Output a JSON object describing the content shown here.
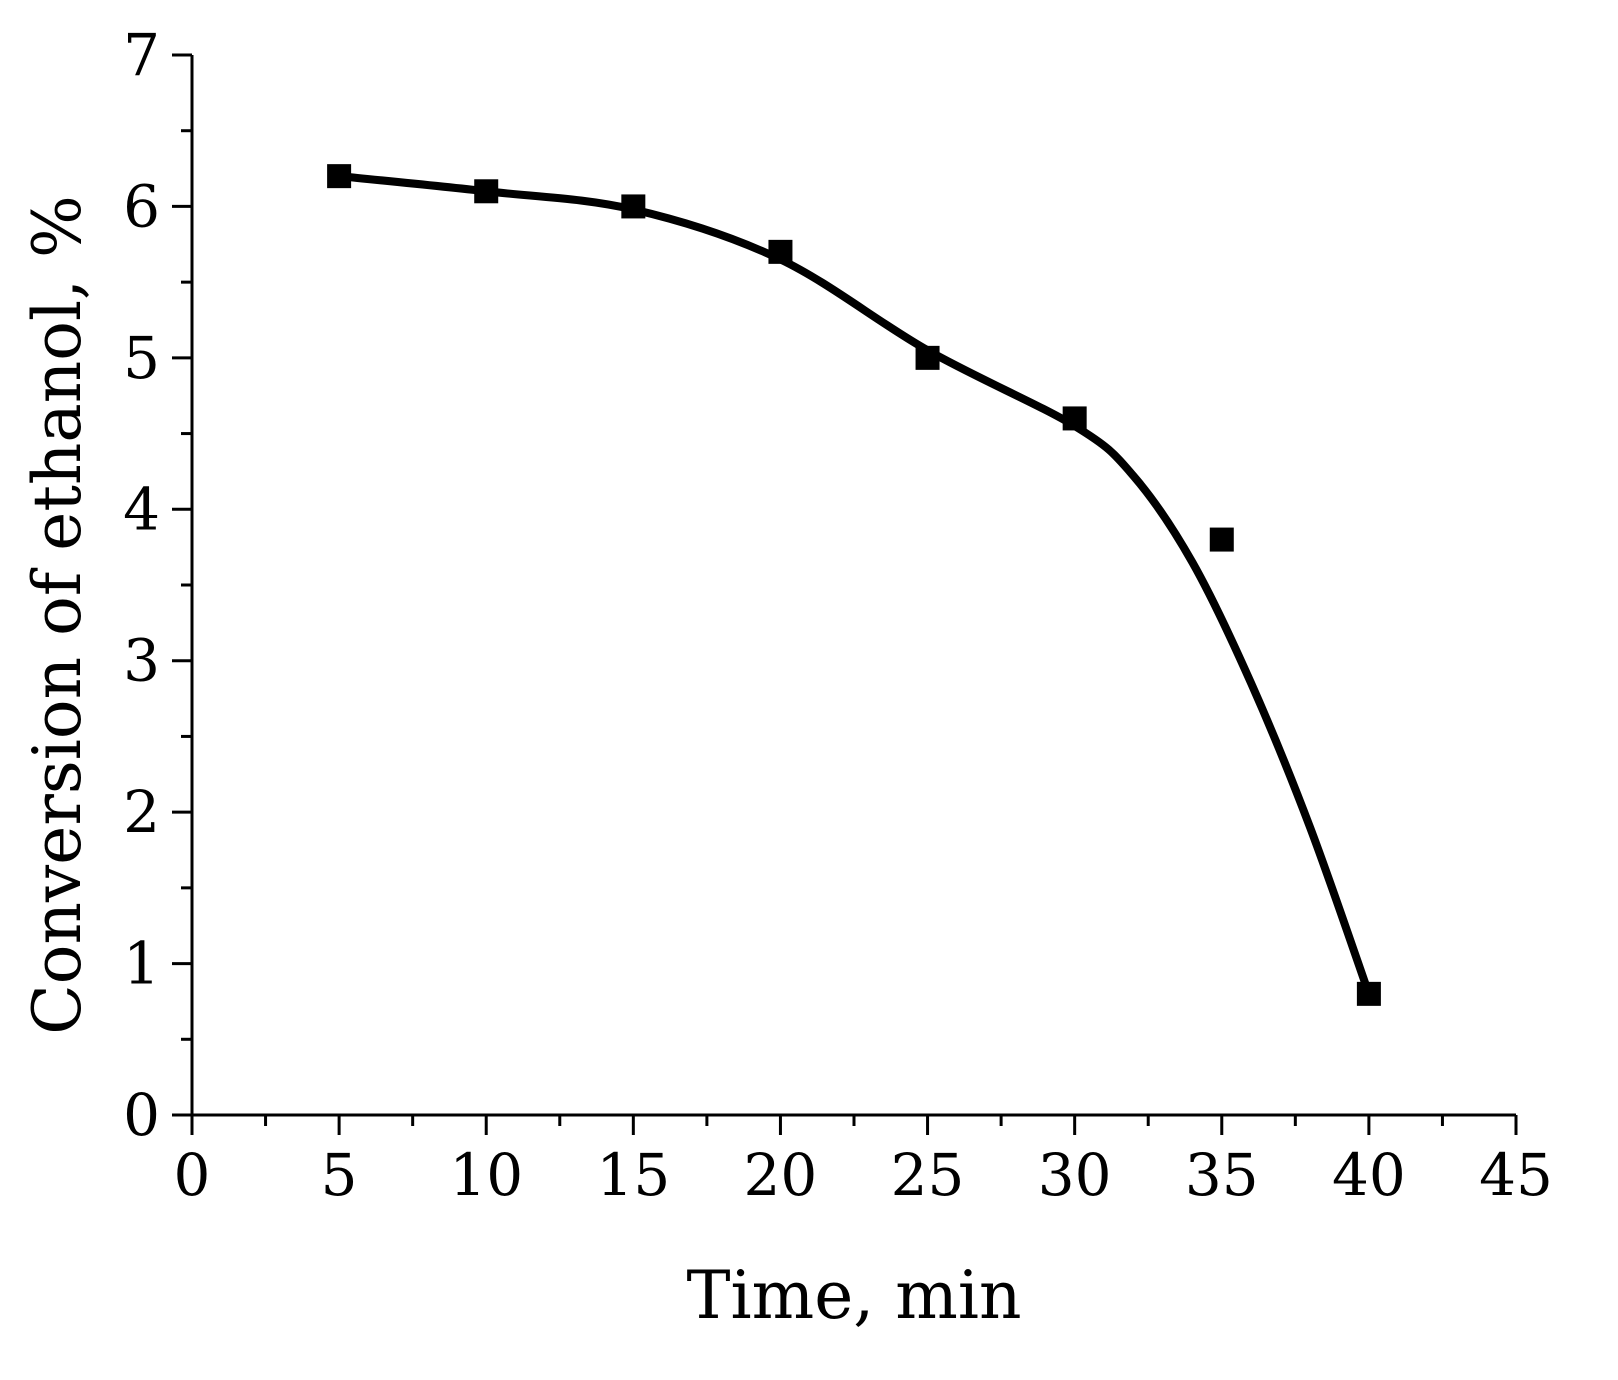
{
  "chart_data": {
    "type": "line",
    "title": "",
    "xlabel": "Time, min",
    "ylabel": "Conversion of ethanol, %",
    "xlim": [
      0,
      45
    ],
    "ylim": [
      0,
      7
    ],
    "x_ticks": [
      0,
      5,
      10,
      15,
      20,
      25,
      30,
      35,
      40,
      45
    ],
    "x_tick_labels": [
      "0",
      "5",
      "10",
      "15",
      "20",
      "25",
      "30",
      "35",
      "40",
      "45"
    ],
    "y_ticks": [
      0,
      1,
      2,
      3,
      4,
      5,
      6,
      7
    ],
    "y_tick_labels": [
      "0",
      "1",
      "2",
      "3",
      "4",
      "5",
      "6",
      "7"
    ],
    "grid": false,
    "legend": "none",
    "series": [
      {
        "marker": "square",
        "color": "#000000",
        "x": [
          5,
          10,
          15,
          20,
          25,
          30,
          35,
          40
        ],
        "y": [
          6.2,
          6.1,
          6.0,
          5.7,
          5.0,
          4.6,
          3.8,
          0.8
        ]
      }
    ],
    "fit_curve": {
      "color": "#000000",
      "x": [
        5,
        10,
        15,
        20,
        25,
        30,
        32,
        34,
        36,
        38,
        40
      ],
      "y": [
        6.2,
        6.1,
        5.98,
        5.65,
        5.05,
        4.55,
        4.22,
        3.65,
        2.85,
        1.9,
        0.8
      ]
    }
  }
}
